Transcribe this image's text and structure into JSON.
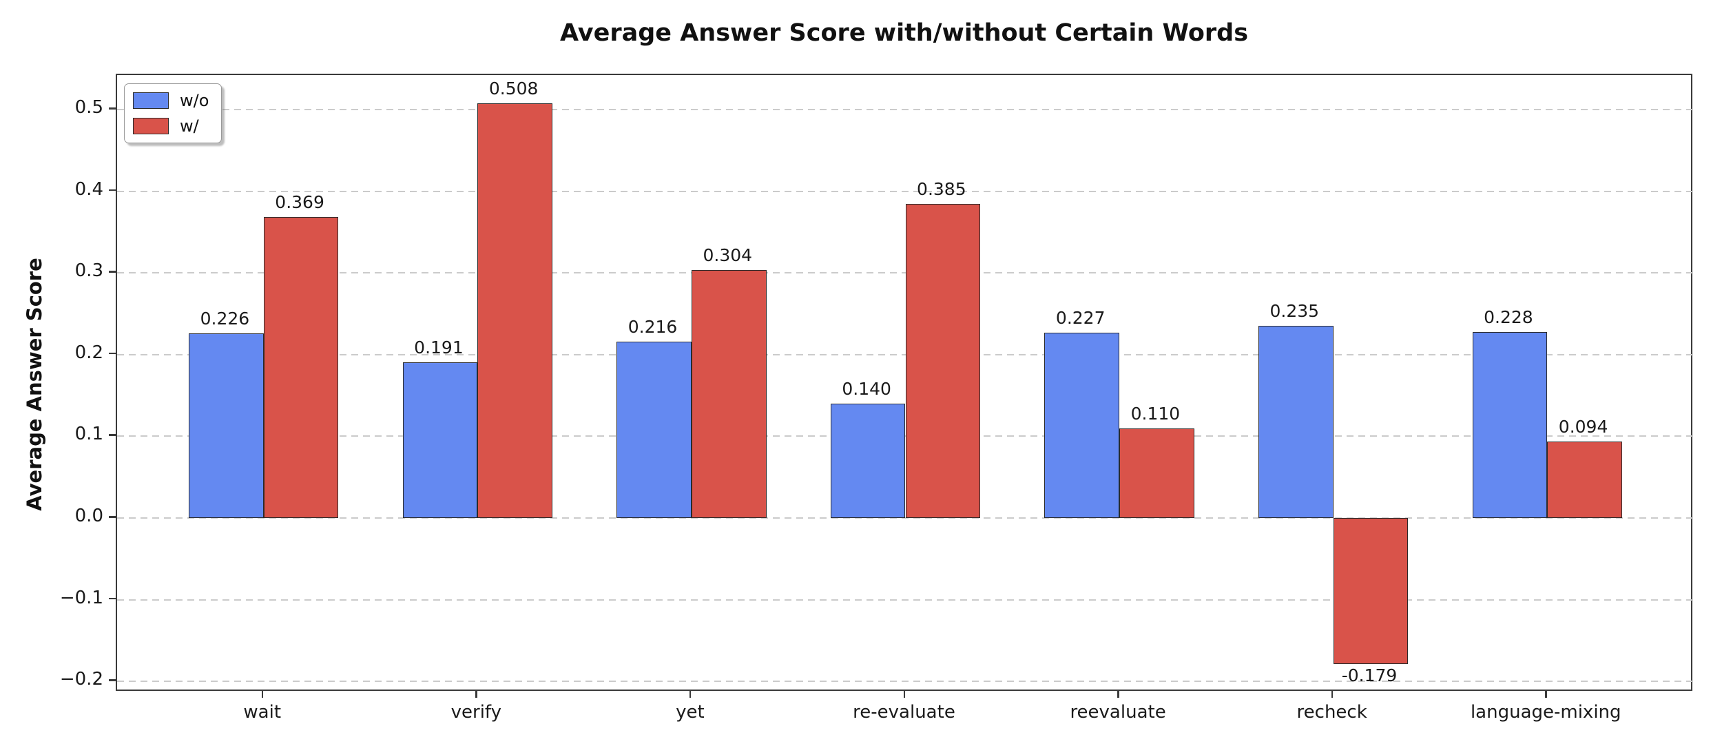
{
  "chart_data": {
    "type": "bar",
    "title": "Average Answer Score with/without Certain Words",
    "xlabel": "",
    "ylabel": "Average Answer Score",
    "categories": [
      "wait",
      "verify",
      "yet",
      "re-evaluate",
      "reevaluate",
      "recheck",
      "language-mixing"
    ],
    "series": [
      {
        "name": "w/o",
        "color": "#6489f1",
        "values": [
          0.226,
          0.191,
          0.216,
          0.14,
          0.227,
          0.235,
          0.228
        ]
      },
      {
        "name": "w/",
        "color": "#d9534a",
        "values": [
          0.369,
          0.508,
          0.304,
          0.385,
          0.11,
          -0.179,
          0.094
        ]
      }
    ],
    "value_labels": {
      "w/o": [
        "0.226",
        "0.191",
        "0.216",
        "0.140",
        "0.227",
        "0.235",
        "0.228"
      ],
      "w/": [
        "0.369",
        "0.508",
        "0.304",
        "0.385",
        "0.110",
        "-0.179",
        "0.094"
      ]
    },
    "ylim": [
      -0.2134,
      0.5424
    ],
    "yticks": [
      -0.2,
      -0.1,
      0.0,
      0.1,
      0.2,
      0.3,
      0.4,
      0.5
    ],
    "ytick_labels": [
      "−0.2",
      "−0.1",
      "0.0",
      "0.1",
      "0.2",
      "0.3",
      "0.4",
      "0.5"
    ],
    "grid": "horizontal dashed",
    "legend_position": "upper left",
    "bar_edge_color": "#2b2b2b",
    "background_color": "#ffffff"
  }
}
